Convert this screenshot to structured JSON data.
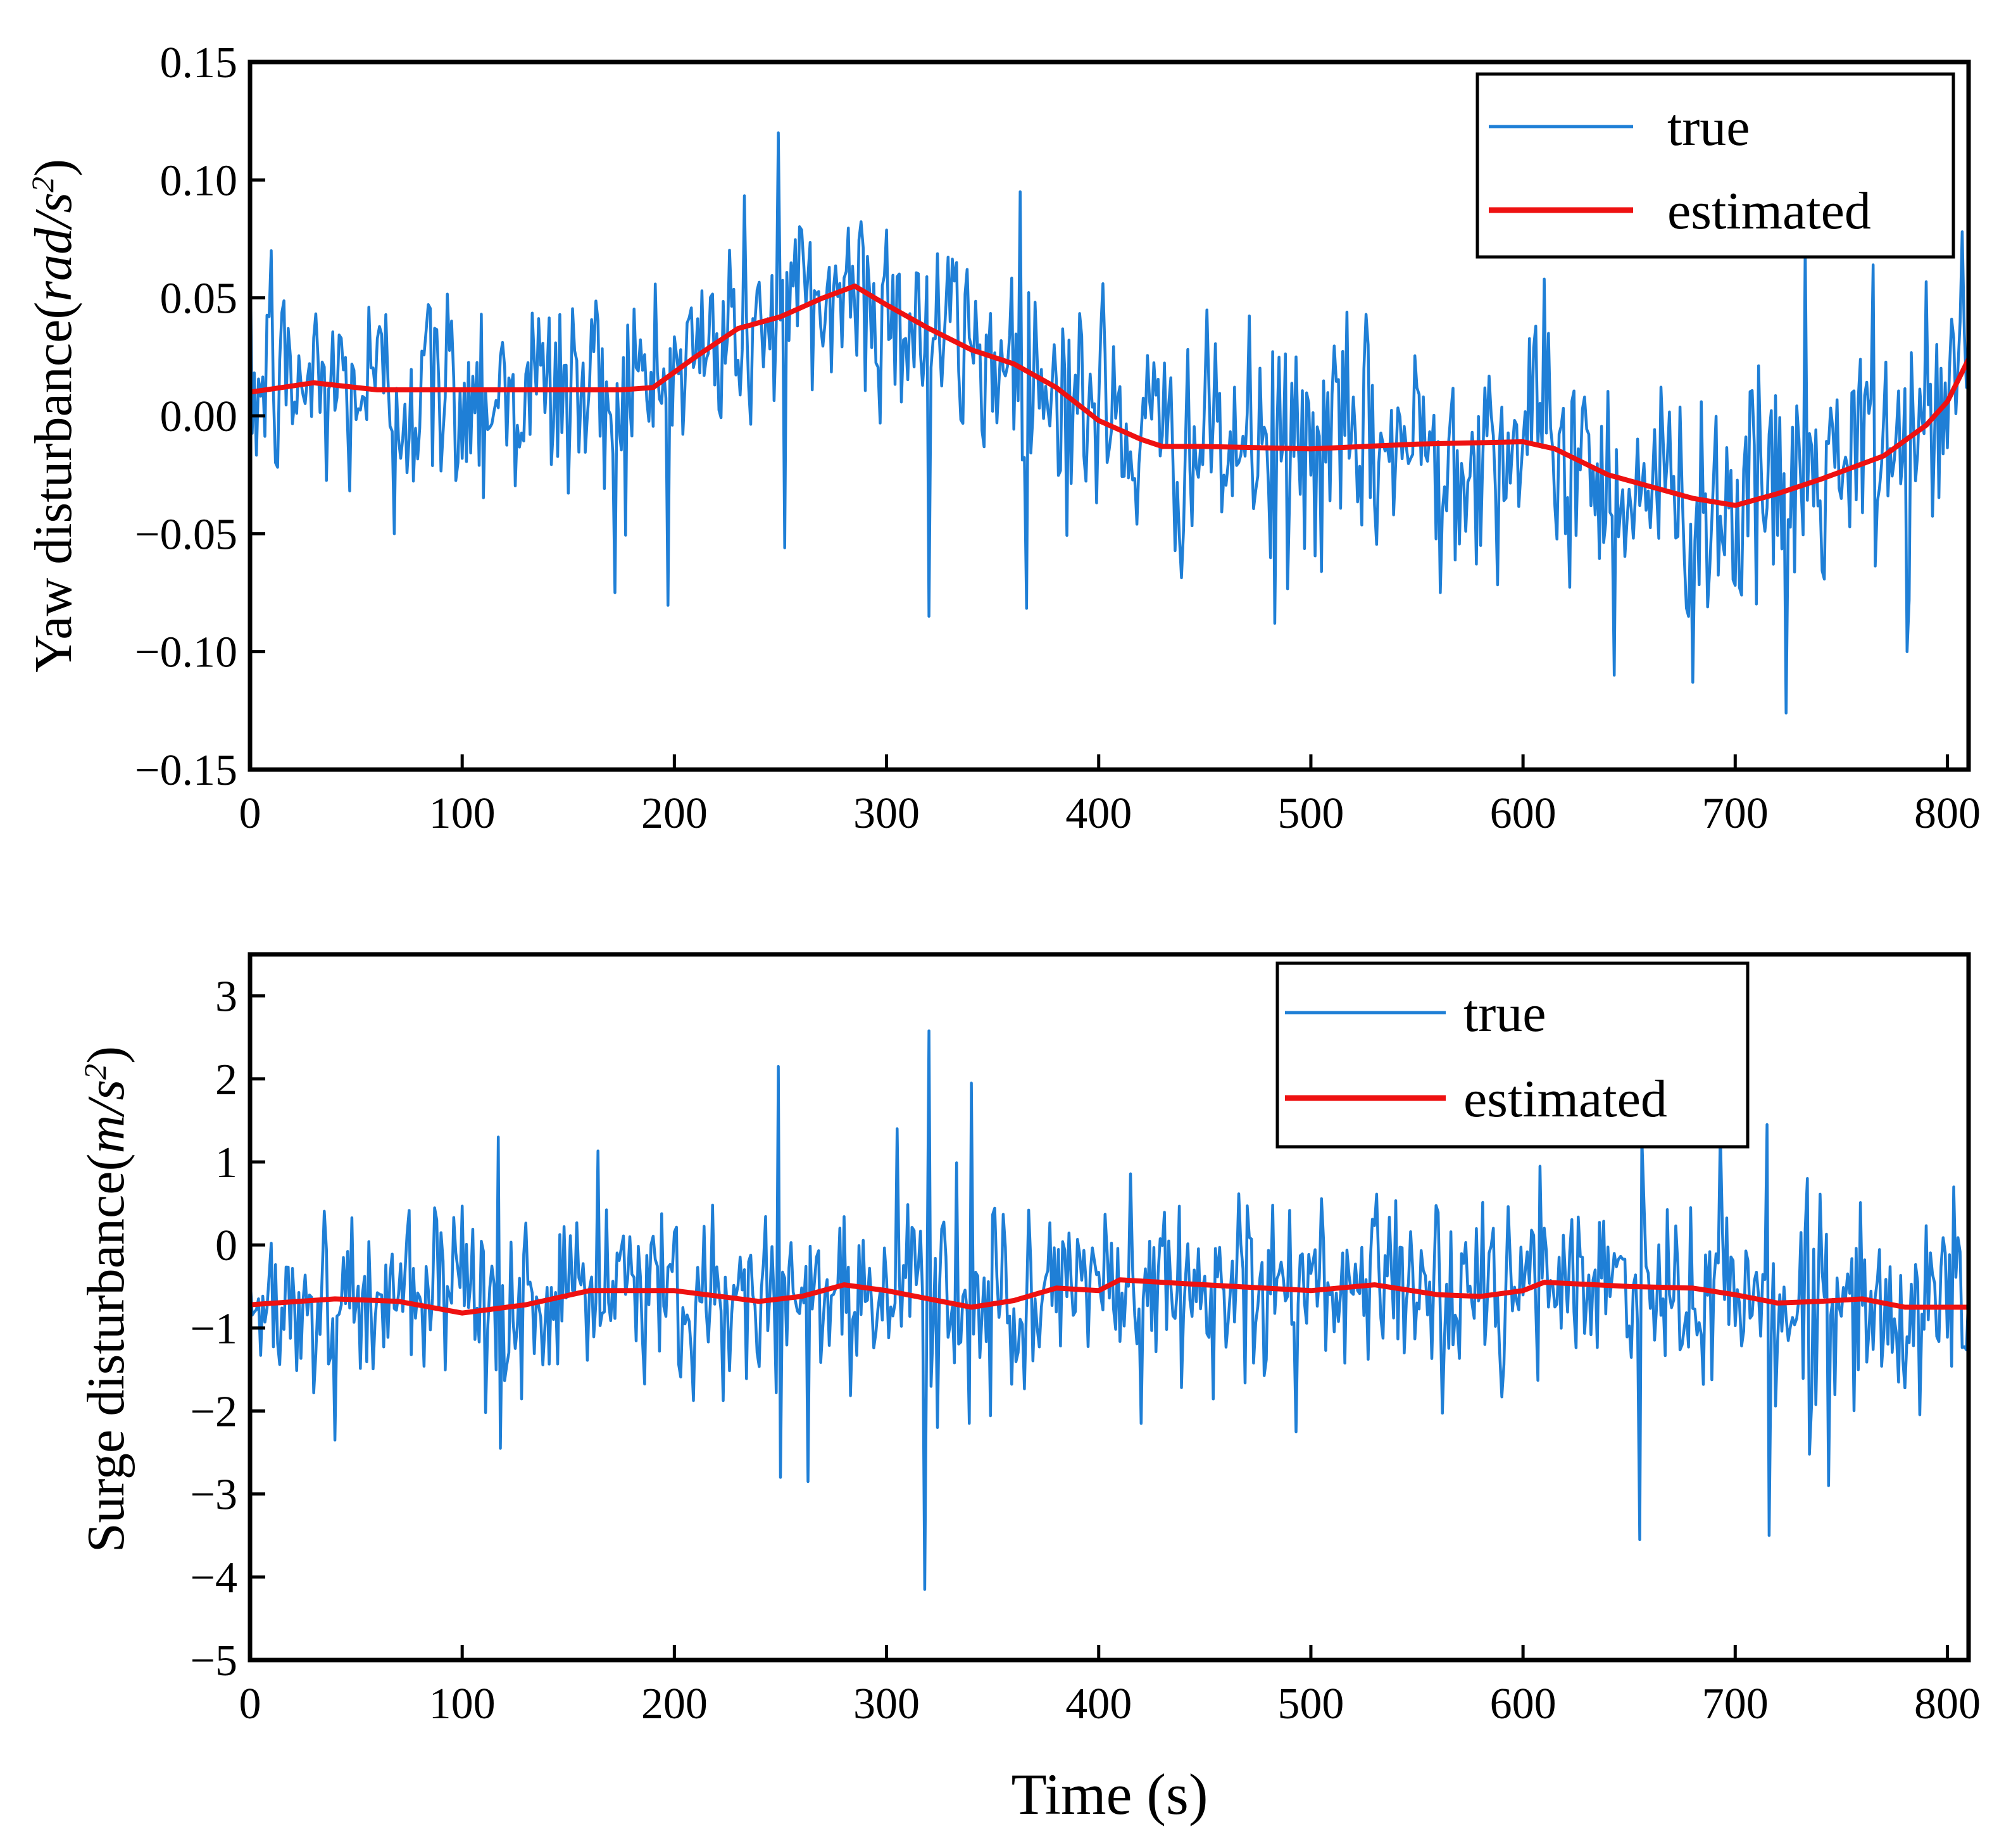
{
  "chart_data": [
    {
      "type": "line",
      "title": "",
      "ylabel": "Yaw disturbance(rad/s²)",
      "ylabel_main": "Yaw disturbance(",
      "ylabel_unit": "rad/s",
      "ylabel_exp": "2",
      "ylabel_close": ")",
      "xlabel": "",
      "xlim": [
        0,
        810
      ],
      "ylim": [
        -0.15,
        0.15
      ],
      "xticks": [
        0,
        100,
        200,
        300,
        400,
        500,
        600,
        700,
        800
      ],
      "yticks": [
        -0.15,
        -0.1,
        -0.05,
        0.0,
        0.05,
        0.1,
        0.15
      ],
      "xtick_labels": [
        "0",
        "100",
        "200",
        "300",
        "400",
        "500",
        "600",
        "700",
        "800"
      ],
      "ytick_labels": [
        "−0.15",
        "−0.10",
        "−0.05",
        "0.00",
        "0.05",
        "0.10",
        "0.15"
      ],
      "grid": false,
      "legend_position": "top-right",
      "noise": {
        "step": 1,
        "sigma_scale": 0.024,
        "seed": 12345
      },
      "series": [
        {
          "name": "true",
          "color": "#1f7fd6",
          "style": "noisy",
          "follows": "estimated",
          "spike_points": [
            [
              10,
              0.07
            ],
            [
              68,
              -0.05
            ],
            [
              172,
              -0.075
            ],
            [
              249,
              0.12
            ],
            [
              252,
              -0.056
            ],
            [
              320,
              -0.085
            ],
            [
              363,
              0.095
            ],
            [
              402,
              0.056
            ],
            [
              483,
              -0.088
            ],
            [
              561,
              -0.075
            ],
            [
              610,
              0.058
            ],
            [
              643,
              -0.11
            ],
            [
              680,
              -0.113
            ],
            [
              724,
              -0.126
            ],
            [
              733,
              0.073
            ],
            [
              765,
              0.064
            ],
            [
              781,
              -0.1
            ],
            [
              807,
              0.078
            ]
          ]
        },
        {
          "name": "estimated",
          "color": "#ee1111",
          "style": "smooth",
          "x": [
            0,
            30,
            60,
            100,
            150,
            175,
            190,
            210,
            230,
            250,
            270,
            285,
            300,
            320,
            340,
            360,
            380,
            400,
            420,
            430,
            450,
            500,
            550,
            600,
            615,
            640,
            660,
            680,
            700,
            720,
            740,
            770,
            790,
            800,
            810
          ],
          "y": [
            0.01,
            0.014,
            0.011,
            0.011,
            0.011,
            0.011,
            0.012,
            0.025,
            0.037,
            0.042,
            0.05,
            0.055,
            0.047,
            0.037,
            0.028,
            0.022,
            0.012,
            -0.002,
            -0.01,
            -0.013,
            -0.013,
            -0.014,
            -0.012,
            -0.011,
            -0.014,
            -0.025,
            -0.03,
            -0.035,
            -0.038,
            -0.033,
            -0.027,
            -0.017,
            -0.004,
            0.006,
            0.024
          ]
        }
      ]
    },
    {
      "type": "line",
      "title": "",
      "ylabel": "Surge disturbance(m/s²)",
      "ylabel_main": "Surge disturbance(",
      "ylabel_unit": "m/s",
      "ylabel_exp": "2",
      "ylabel_close": ")",
      "xlabel": "Time (s)",
      "xlim": [
        0,
        810
      ],
      "ylim": [
        -5,
        3.5
      ],
      "xticks": [
        0,
        100,
        200,
        300,
        400,
        500,
        600,
        700,
        800
      ],
      "yticks": [
        -5,
        -4,
        -3,
        -2,
        -1,
        0,
        1,
        2,
        3
      ],
      "xtick_labels": [
        "0",
        "100",
        "200",
        "300",
        "400",
        "500",
        "600",
        "700",
        "800"
      ],
      "ytick_labels": [
        "−5",
        "−4",
        "−3",
        "−2",
        "−1",
        "0",
        "1",
        "2",
        "3"
      ],
      "grid": false,
      "legend_position": "top-right",
      "noise": {
        "step": 1,
        "sigma_scale": 0.55,
        "seed": 67890
      },
      "series": [
        {
          "name": "true",
          "color": "#1f7fd6",
          "style": "noisy",
          "follows": "estimated",
          "spike_points": [
            [
              40,
              -2.35
            ],
            [
              117,
              1.3
            ],
            [
              118,
              -2.45
            ],
            [
              249,
              2.15
            ],
            [
              250,
              -2.8
            ],
            [
              263,
              -2.85
            ],
            [
              305,
              1.4
            ],
            [
              318,
              -4.15
            ],
            [
              320,
              2.58
            ],
            [
              324,
              -2.2
            ],
            [
              339,
              -2.15
            ],
            [
              340,
              1.95
            ],
            [
              420,
              -2.15
            ],
            [
              493,
              -2.25
            ],
            [
              655,
              -3.55
            ],
            [
              656,
              1.3
            ],
            [
              715,
              1.45
            ],
            [
              716,
              -3.5
            ],
            [
              744,
              -2.9
            ]
          ]
        },
        {
          "name": "estimated",
          "color": "#ee1111",
          "style": "smooth",
          "x": [
            0,
            40,
            70,
            100,
            130,
            160,
            200,
            240,
            260,
            280,
            300,
            320,
            340,
            360,
            380,
            400,
            410,
            450,
            500,
            530,
            560,
            580,
            600,
            610,
            650,
            680,
            700,
            720,
            740,
            760,
            780,
            800,
            810
          ],
          "y": [
            -0.72,
            -0.65,
            -0.68,
            -0.82,
            -0.72,
            -0.55,
            -0.55,
            -0.68,
            -0.62,
            -0.48,
            -0.55,
            -0.65,
            -0.75,
            -0.67,
            -0.52,
            -0.55,
            -0.42,
            -0.48,
            -0.55,
            -0.48,
            -0.6,
            -0.62,
            -0.55,
            -0.45,
            -0.5,
            -0.52,
            -0.6,
            -0.7,
            -0.68,
            -0.65,
            -0.75,
            -0.75,
            -0.75
          ]
        }
      ]
    }
  ]
}
